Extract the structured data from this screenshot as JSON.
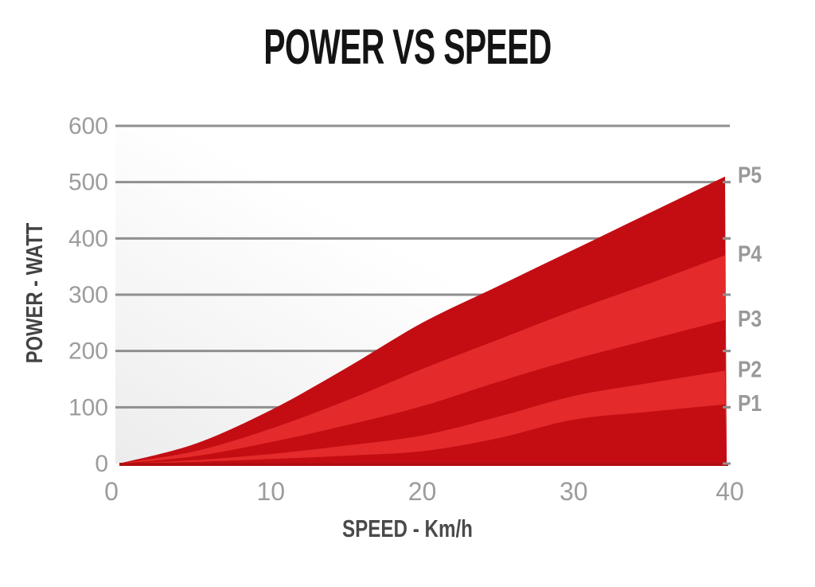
{
  "chart_data": {
    "type": "area",
    "title": "POWER VS SPEED",
    "xlabel": "SPEED - Km/h",
    "ylabel": "POWER - WATT",
    "x": [
      0,
      5,
      10,
      15,
      20,
      25,
      30,
      35,
      40
    ],
    "xlim": [
      0,
      40
    ],
    "ylim": [
      0,
      600
    ],
    "x_ticks": [
      0,
      10,
      20,
      30,
      40
    ],
    "y_ticks": [
      0,
      100,
      200,
      300,
      400,
      500,
      600
    ],
    "grid": "horizontal",
    "legend_position": "right-edge-labels",
    "series": [
      {
        "name": "P5",
        "values": [
          0,
          35,
          95,
          170,
          250,
          315,
          380,
          445,
          510
        ],
        "color": "#c30d13"
      },
      {
        "name": "P4",
        "values": [
          0,
          22,
          62,
          112,
          168,
          220,
          272,
          320,
          370
        ],
        "color": "#e42a2a"
      },
      {
        "name": "P3",
        "values": [
          0,
          13,
          38,
          68,
          102,
          145,
          185,
          220,
          255
        ],
        "color": "#c30d13"
      },
      {
        "name": "P2",
        "values": [
          0,
          6,
          17,
          32,
          50,
          83,
          120,
          143,
          165
        ],
        "color": "#e42a2a"
      },
      {
        "name": "P1",
        "values": [
          0,
          3,
          8,
          14,
          22,
          45,
          78,
          92,
          105
        ],
        "color": "#c30d13"
      }
    ]
  },
  "colors": {
    "grid": "#8f8f8f",
    "tick_label": "#9c9c9c",
    "axis_title": "#4a4a4a",
    "title": "#141414",
    "series_label": "#999999",
    "baseline": "#b20d12",
    "band_dark": "#c30d13",
    "band_light": "#e42a2a",
    "bg_top": "#ffffff",
    "bg_bottom": "#ececec"
  }
}
